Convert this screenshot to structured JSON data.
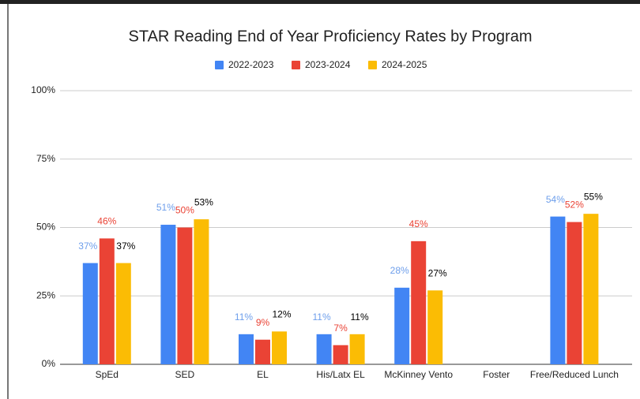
{
  "chart_data": {
    "type": "bar",
    "title": "STAR Reading End of Year Proficiency Rates by Program",
    "categories": [
      "SpEd",
      "SED",
      "EL",
      "His/Latx EL",
      "McKinney Vento",
      "Foster",
      "Free/Reduced Lunch"
    ],
    "series": [
      {
        "name": "2022-2023",
        "color": "#4285f4",
        "label_color": "#6d9eeb",
        "values": [
          37,
          51,
          11,
          11,
          28,
          null,
          54
        ],
        "value_labels": [
          "37%",
          "51%",
          "11%",
          "11%",
          "28%",
          null,
          "54%"
        ]
      },
      {
        "name": "2023-2024",
        "color": "#ea4335",
        "label_color": "#ea4335",
        "values": [
          46,
          50,
          9,
          7,
          45,
          null,
          52
        ],
        "value_labels": [
          "46%",
          "50%",
          "9%",
          "7%",
          "45%",
          null,
          "52%"
        ]
      },
      {
        "name": "2024-2025",
        "color": "#fbbc04",
        "label_color": "#000000",
        "values": [
          37,
          53,
          12,
          11,
          27,
          null,
          55
        ],
        "value_labels": [
          "37%",
          "53%",
          "12%",
          "11%",
          "27%",
          null,
          "55%"
        ]
      }
    ],
    "ylim": [
      0,
      100
    ],
    "yticks": [
      {
        "value": 0,
        "label": "0%"
      },
      {
        "value": 25,
        "label": "25%"
      },
      {
        "value": 50,
        "label": "50%"
      },
      {
        "value": 75,
        "label": "75%"
      },
      {
        "value": 100,
        "label": "100%"
      }
    ],
    "grid": true,
    "legend": "top"
  }
}
